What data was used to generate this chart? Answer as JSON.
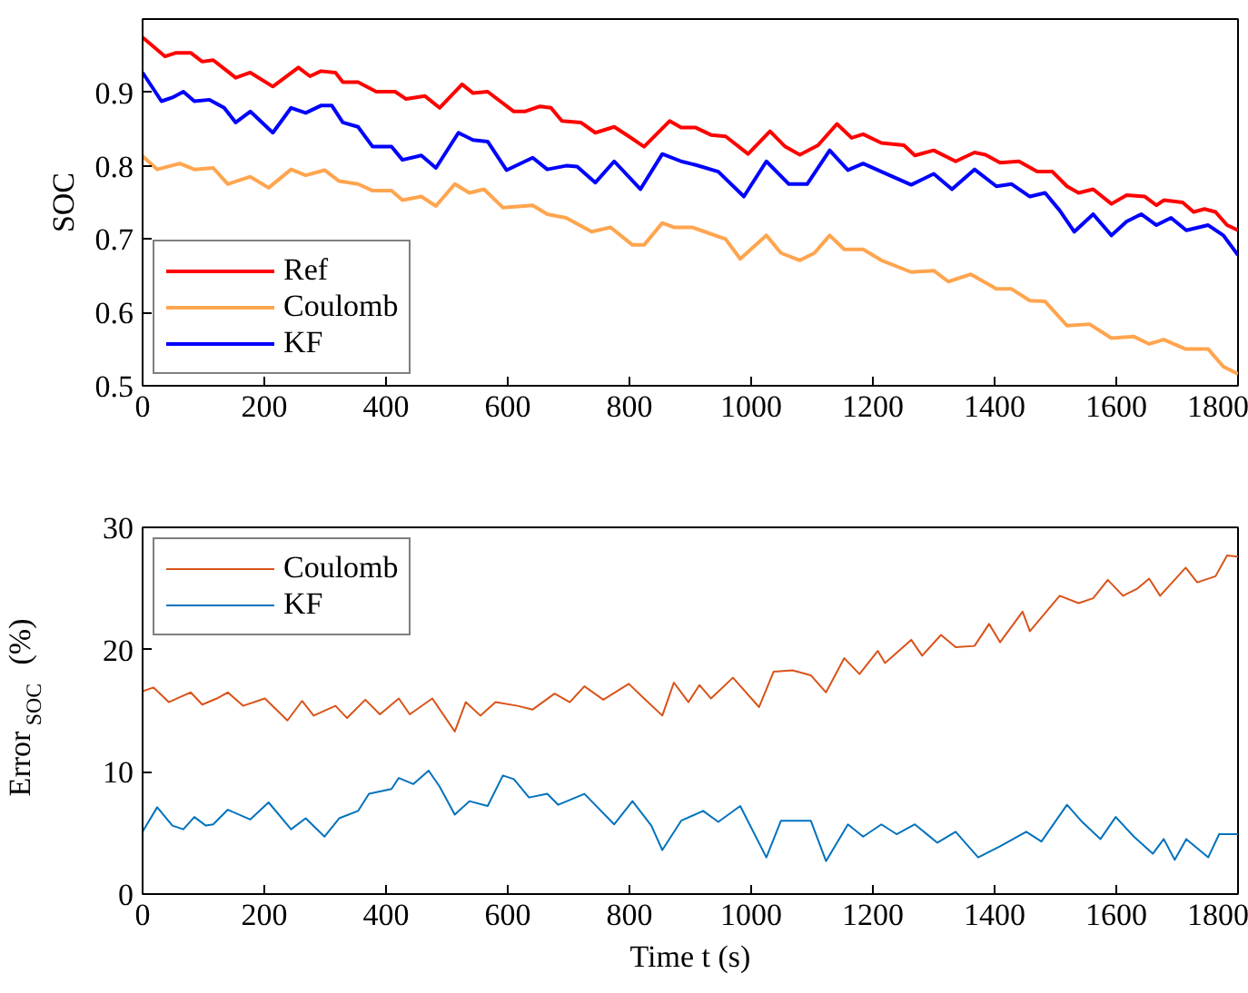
{
  "chart_data": [
    {
      "type": "line",
      "ylabel": "SOC",
      "xlim": [
        0,
        1800
      ],
      "xticks": [
        0,
        200,
        400,
        600,
        800,
        1000,
        1200,
        1400,
        1600,
        1800
      ],
      "ylim": [
        0.5,
        1.0
      ],
      "yticks": [
        0.5,
        0.6,
        0.7,
        0.8,
        0.9
      ],
      "grid": false,
      "legend": "bottom left",
      "series": [
        {
          "name": "Ref",
          "color": "#ff0000",
          "x": [
            0,
            37,
            55,
            79,
            98,
            116,
            153,
            177,
            214,
            256,
            275,
            293,
            317,
            329,
            354,
            384,
            415,
            433,
            464,
            488,
            525,
            543,
            567,
            610,
            628,
            653,
            671,
            689,
            720,
            744,
            775,
            799,
            824,
            866,
            885,
            909,
            934,
            958,
            995,
            1031,
            1056,
            1080,
            1110,
            1141,
            1165,
            1184,
            1214,
            1251,
            1269,
            1300,
            1336,
            1367,
            1385,
            1409,
            1440,
            1470,
            1495,
            1519,
            1538,
            1562,
            1592,
            1617,
            1647,
            1666,
            1678,
            1709,
            1727,
            1745,
            1763,
            1782,
            1800
          ],
          "values": [
            0.975,
            0.949,
            0.954,
            0.954,
            0.942,
            0.944,
            0.92,
            0.927,
            0.908,
            0.934,
            0.922,
            0.929,
            0.927,
            0.914,
            0.914,
            0.901,
            0.901,
            0.891,
            0.895,
            0.879,
            0.911,
            0.899,
            0.901,
            0.874,
            0.874,
            0.881,
            0.879,
            0.861,
            0.859,
            0.845,
            0.853,
            0.84,
            0.826,
            0.861,
            0.852,
            0.852,
            0.842,
            0.84,
            0.816,
            0.847,
            0.826,
            0.815,
            0.828,
            0.857,
            0.838,
            0.843,
            0.831,
            0.828,
            0.814,
            0.821,
            0.806,
            0.818,
            0.815,
            0.804,
            0.806,
            0.792,
            0.792,
            0.772,
            0.763,
            0.768,
            0.748,
            0.76,
            0.758,
            0.746,
            0.753,
            0.75,
            0.737,
            0.741,
            0.737,
            0.719,
            0.712
          ]
        },
        {
          "name": "Coulomb",
          "color": "#ffa54f",
          "x": [
            0,
            24,
            61,
            85,
            116,
            140,
            177,
            207,
            244,
            268,
            299,
            323,
            354,
            378,
            409,
            427,
            458,
            482,
            513,
            537,
            561,
            592,
            641,
            665,
            696,
            738,
            769,
            805,
            824,
            854,
            873,
            903,
            934,
            958,
            982,
            1025,
            1049,
            1080,
            1104,
            1129,
            1153,
            1184,
            1214,
            1263,
            1300,
            1324,
            1361,
            1403,
            1428,
            1458,
            1483,
            1519,
            1556,
            1592,
            1629,
            1654,
            1678,
            1714,
            1751,
            1776,
            1800
          ],
          "values": [
            0.813,
            0.795,
            0.803,
            0.795,
            0.797,
            0.775,
            0.785,
            0.77,
            0.795,
            0.787,
            0.794,
            0.779,
            0.775,
            0.766,
            0.766,
            0.753,
            0.758,
            0.745,
            0.775,
            0.763,
            0.768,
            0.743,
            0.746,
            0.734,
            0.729,
            0.71,
            0.716,
            0.692,
            0.692,
            0.722,
            0.716,
            0.716,
            0.707,
            0.7,
            0.673,
            0.705,
            0.681,
            0.671,
            0.681,
            0.705,
            0.686,
            0.686,
            0.671,
            0.655,
            0.657,
            0.642,
            0.652,
            0.632,
            0.632,
            0.616,
            0.615,
            0.582,
            0.584,
            0.565,
            0.567,
            0.557,
            0.563,
            0.55,
            0.55,
            0.526,
            0.516
          ]
        },
        {
          "name": "KF",
          "color": "#0000ff",
          "x": [
            0,
            31,
            49,
            67,
            85,
            110,
            134,
            153,
            177,
            214,
            244,
            268,
            293,
            311,
            329,
            354,
            378,
            409,
            427,
            458,
            482,
            519,
            543,
            567,
            598,
            641,
            665,
            696,
            714,
            744,
            775,
            818,
            854,
            885,
            909,
            946,
            988,
            1025,
            1062,
            1092,
            1129,
            1159,
            1184,
            1214,
            1263,
            1300,
            1330,
            1367,
            1403,
            1428,
            1458,
            1483,
            1507,
            1531,
            1562,
            1592,
            1617,
            1641,
            1666,
            1690,
            1715,
            1751,
            1776,
            1800
          ],
          "values": [
            0.927,
            0.888,
            0.893,
            0.901,
            0.888,
            0.89,
            0.879,
            0.859,
            0.874,
            0.845,
            0.879,
            0.872,
            0.882,
            0.882,
            0.859,
            0.853,
            0.826,
            0.826,
            0.808,
            0.814,
            0.797,
            0.845,
            0.835,
            0.833,
            0.794,
            0.811,
            0.795,
            0.8,
            0.799,
            0.777,
            0.806,
            0.768,
            0.816,
            0.806,
            0.801,
            0.792,
            0.758,
            0.806,
            0.775,
            0.775,
            0.821,
            0.794,
            0.803,
            0.792,
            0.774,
            0.789,
            0.768,
            0.795,
            0.772,
            0.775,
            0.758,
            0.763,
            0.739,
            0.71,
            0.734,
            0.705,
            0.724,
            0.734,
            0.719,
            0.729,
            0.712,
            0.719,
            0.705,
            0.678
          ]
        }
      ]
    },
    {
      "type": "line",
      "xlabel": "Time t (s)",
      "ylabel": "Error$_{SOC}$ (%)",
      "xlim": [
        0,
        1800
      ],
      "xticks": [
        0,
        200,
        400,
        600,
        800,
        1000,
        1200,
        1400,
        1600,
        1800
      ],
      "ylim": [
        0,
        30
      ],
      "yticks": [
        0,
        10,
        20,
        30
      ],
      "grid": false,
      "legend": "top left",
      "series": [
        {
          "name": "Coulomb",
          "color": "#d95319",
          "x": [
            0,
            18,
            43,
            61,
            79,
            98,
            122,
            140,
            165,
            201,
            238,
            262,
            281,
            317,
            336,
            366,
            390,
            421,
            439,
            476,
            513,
            531,
            555,
            580,
            616,
            641,
            677,
            702,
            726,
            757,
            799,
            824,
            854,
            873,
            897,
            915,
            934,
            970,
            1013,
            1037,
            1068,
            1098,
            1123,
            1153,
            1178,
            1208,
            1220,
            1263,
            1281,
            1312,
            1336,
            1367,
            1391,
            1409,
            1446,
            1458,
            1507,
            1538,
            1562,
            1586,
            1611,
            1635,
            1654,
            1672,
            1714,
            1733,
            1763,
            1782,
            1800
          ],
          "values": [
            16.6,
            16.9,
            15.7,
            16.1,
            16.5,
            15.5,
            16.0,
            16.5,
            15.4,
            16.0,
            14.2,
            15.8,
            14.6,
            15.4,
            14.4,
            15.9,
            14.7,
            16.0,
            14.7,
            16.0,
            13.3,
            15.7,
            14.6,
            15.7,
            15.4,
            15.1,
            16.4,
            15.7,
            17.0,
            15.9,
            17.2,
            16.0,
            14.6,
            17.3,
            15.7,
            17.1,
            16.0,
            17.7,
            15.3,
            18.2,
            18.3,
            17.9,
            16.5,
            19.3,
            18.0,
            19.9,
            18.9,
            20.8,
            19.5,
            21.2,
            20.2,
            20.3,
            22.1,
            20.6,
            23.1,
            21.5,
            24.4,
            23.8,
            24.2,
            25.7,
            24.4,
            25.0,
            25.8,
            24.4,
            26.7,
            25.5,
            26.0,
            27.7,
            27.6
          ]
        },
        {
          "name": "KF",
          "color": "#0072bd",
          "x": [
            0,
            24,
            49,
            67,
            85,
            104,
            116,
            140,
            177,
            207,
            244,
            268,
            299,
            323,
            354,
            372,
            409,
            421,
            445,
            470,
            488,
            513,
            537,
            567,
            592,
            610,
            635,
            665,
            683,
            726,
            775,
            805,
            836,
            854,
            885,
            921,
            946,
            982,
            1025,
            1049,
            1098,
            1123,
            1159,
            1184,
            1214,
            1239,
            1269,
            1306,
            1336,
            1373,
            1409,
            1452,
            1477,
            1519,
            1544,
            1574,
            1599,
            1629,
            1660,
            1678,
            1696,
            1715,
            1751,
            1769,
            1800
          ],
          "values": [
            5.1,
            7.1,
            5.6,
            5.3,
            6.3,
            5.6,
            5.7,
            6.9,
            6.1,
            7.5,
            5.3,
            6.2,
            4.7,
            6.2,
            6.8,
            8.2,
            8.6,
            9.5,
            9.0,
            10.1,
            8.8,
            6.5,
            7.6,
            7.2,
            9.7,
            9.4,
            7.9,
            8.2,
            7.3,
            8.2,
            5.7,
            7.6,
            5.6,
            3.6,
            6.0,
            6.8,
            5.9,
            7.2,
            3.0,
            6.0,
            6.0,
            2.7,
            5.7,
            4.7,
            5.7,
            4.9,
            5.7,
            4.2,
            5.1,
            3.0,
            3.9,
            5.1,
            4.3,
            7.3,
            5.9,
            4.5,
            6.3,
            4.7,
            3.3,
            4.5,
            2.8,
            4.5,
            3.0,
            4.9,
            4.9
          ]
        }
      ]
    }
  ]
}
